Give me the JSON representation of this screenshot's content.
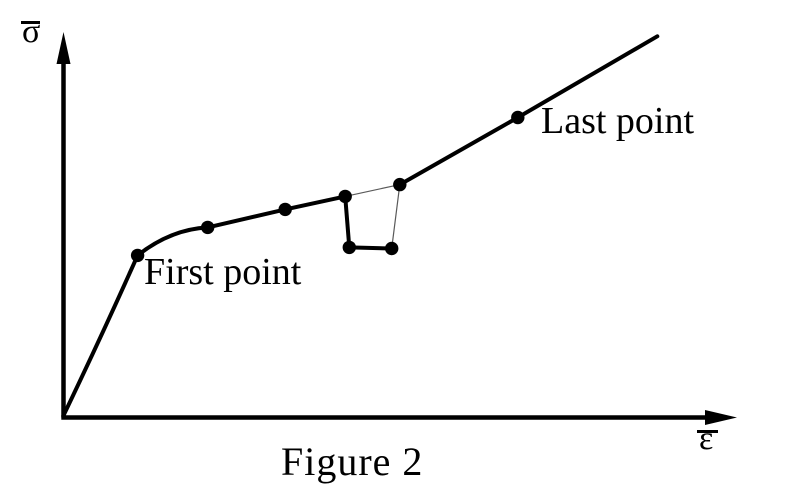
{
  "figure": {
    "caption": "Figure 2",
    "axes": {
      "y_label": "σ̄",
      "x_label": "ε̄",
      "y_label_glyph": "σ",
      "x_label_glyph": "ε"
    },
    "annotations": {
      "first_point_label": "First point",
      "last_point_label": "Last point"
    },
    "colors": {
      "ink": "#000000",
      "thin_line": "#5a5a5a",
      "background": "#ffffff"
    }
  },
  "chart_data": {
    "type": "line",
    "title": "Figure 2",
    "xlabel": "ε̄",
    "ylabel": "σ̄",
    "x_ticks": [],
    "y_ticks": [],
    "grid": false,
    "legend": false,
    "coordinates_note": "schematic stress-strain curve; axes carry no numeric scale; point coordinates are fractions of each axis length",
    "series": [
      {
        "name": "main-curve-with-dip",
        "style": "thick",
        "points": [
          [
            0.0,
            0.0
          ],
          [
            0.11,
            0.418
          ],
          [
            0.214,
            0.491
          ],
          [
            0.329,
            0.538
          ],
          [
            0.418,
            0.572
          ],
          [
            0.424,
            0.439
          ],
          [
            0.487,
            0.436
          ]
        ],
        "curve_controls": [
          [
            0.059,
            0.217
          ],
          [
            0.159,
            0.486
          ],
          null,
          null,
          null,
          null
        ]
      },
      {
        "name": "skip-connector-thin",
        "style": "thin",
        "points": [
          [
            0.418,
            0.572
          ],
          [
            0.499,
            0.603
          ]
        ]
      },
      {
        "name": "return-connector-thin",
        "style": "thin",
        "points": [
          [
            0.487,
            0.436
          ],
          [
            0.499,
            0.603
          ]
        ]
      },
      {
        "name": "upper-branch",
        "style": "thick",
        "points": [
          [
            0.499,
            0.603
          ],
          [
            0.674,
            0.778
          ],
          [
            0.881,
            0.99
          ]
        ]
      }
    ],
    "markers": [
      [
        0.11,
        0.418
      ],
      [
        0.214,
        0.491
      ],
      [
        0.329,
        0.538
      ],
      [
        0.418,
        0.572
      ],
      [
        0.424,
        0.439
      ],
      [
        0.487,
        0.436
      ],
      [
        0.499,
        0.603
      ],
      [
        0.674,
        0.778
      ]
    ],
    "marker_annotations": [
      {
        "text": "First point",
        "marker_index": 0
      },
      {
        "text": "Last point",
        "marker_index": 7
      }
    ]
  }
}
